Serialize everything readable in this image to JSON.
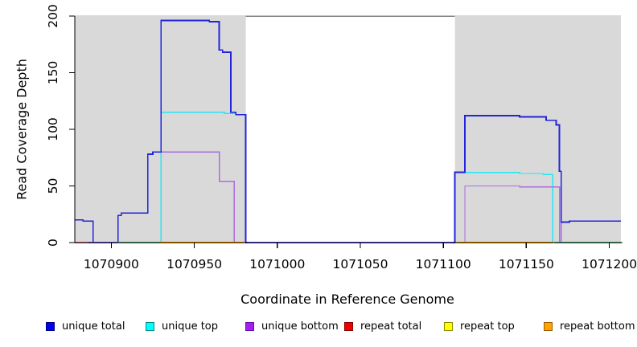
{
  "chart_data": {
    "type": "line",
    "title": "",
    "xlabel": "Coordinate in Reference Genome",
    "ylabel": "Read Coverage Depth",
    "xlim": [
      1070878,
      1071207
    ],
    "ylim": [
      0,
      200
    ],
    "x_ticks": [
      1070900,
      1070950,
      1071000,
      1071050,
      1071100,
      1071150,
      1071200
    ],
    "y_ticks": [
      0,
      50,
      100,
      150,
      200
    ],
    "grid": "off",
    "legend_position": "bottom",
    "shaded_color": "#D9D9D9",
    "shaded_regions": [
      {
        "from": 1070878,
        "to": 1070981
      },
      {
        "from": 1071107,
        "to": 1071207
      }
    ],
    "cap_line": {
      "value": 200,
      "from": 1070981,
      "to": 1071107,
      "color": "#828282"
    },
    "draw_order": [
      "repeat total",
      "repeat top",
      "repeat bottom",
      "unique top",
      "unique bottom",
      "unique total"
    ],
    "series": [
      {
        "name": "unique total",
        "color": "#2424DC",
        "width": 1.8,
        "points": [
          [
            1070878,
            20
          ],
          [
            1070883,
            20
          ],
          [
            1070883,
            19
          ],
          [
            1070889,
            19
          ],
          [
            1070889,
            0
          ],
          [
            1070904,
            0
          ],
          [
            1070904,
            24
          ],
          [
            1070906,
            24
          ],
          [
            1070906,
            26
          ],
          [
            1070922,
            26
          ],
          [
            1070922,
            78
          ],
          [
            1070925,
            78
          ],
          [
            1070925,
            80
          ],
          [
            1070930,
            80
          ],
          [
            1070930,
            196
          ],
          [
            1070959,
            196
          ],
          [
            1070959,
            195
          ],
          [
            1070965,
            195
          ],
          [
            1070965,
            170
          ],
          [
            1070967,
            170
          ],
          [
            1070967,
            168
          ],
          [
            1070972,
            168
          ],
          [
            1070972,
            115
          ],
          [
            1070975,
            115
          ],
          [
            1070975,
            113
          ],
          [
            1070981,
            113
          ],
          [
            1070981,
            0
          ],
          [
            1071107,
            0
          ],
          [
            1071107,
            62
          ],
          [
            1071113,
            62
          ],
          [
            1071113,
            112
          ],
          [
            1071146,
            112
          ],
          [
            1071146,
            111
          ],
          [
            1071162,
            111
          ],
          [
            1071162,
            108
          ],
          [
            1071168,
            108
          ],
          [
            1071168,
            104
          ],
          [
            1071170,
            104
          ],
          [
            1071170,
            63
          ],
          [
            1071171,
            63
          ],
          [
            1071171,
            18
          ],
          [
            1071176,
            18
          ],
          [
            1071176,
            19
          ],
          [
            1071207,
            19
          ]
        ]
      },
      {
        "name": "unique top",
        "color": "#22E8F2",
        "width": 1.4,
        "points": [
          [
            1070878,
            20
          ],
          [
            1070883,
            20
          ],
          [
            1070883,
            19
          ],
          [
            1070889,
            19
          ],
          [
            1070889,
            0
          ],
          [
            1070930,
            0
          ],
          [
            1070930,
            115
          ],
          [
            1070968,
            115
          ],
          [
            1070968,
            114
          ],
          [
            1070975,
            114
          ],
          [
            1070975,
            113
          ],
          [
            1070981,
            113
          ],
          [
            1070981,
            0
          ],
          [
            1071107,
            0
          ],
          [
            1071107,
            62
          ],
          [
            1071146,
            62
          ],
          [
            1071146,
            61
          ],
          [
            1071160,
            61
          ],
          [
            1071160,
            60
          ],
          [
            1071166,
            60
          ],
          [
            1071166,
            0
          ],
          [
            1071207,
            0
          ]
        ]
      },
      {
        "name": "unique bottom",
        "color": "#AB6CDE",
        "width": 1.4,
        "points": [
          [
            1070878,
            0
          ],
          [
            1070904,
            0
          ],
          [
            1070904,
            24
          ],
          [
            1070906,
            24
          ],
          [
            1070906,
            26
          ],
          [
            1070922,
            26
          ],
          [
            1070922,
            78
          ],
          [
            1070925,
            78
          ],
          [
            1070925,
            80
          ],
          [
            1070965,
            80
          ],
          [
            1070965,
            54
          ],
          [
            1070974,
            54
          ],
          [
            1070974,
            0
          ],
          [
            1071113,
            0
          ],
          [
            1071113,
            50
          ],
          [
            1071146,
            50
          ],
          [
            1071146,
            49
          ],
          [
            1071170,
            49
          ],
          [
            1071170,
            0
          ],
          [
            1071171,
            0
          ],
          [
            1071171,
            18
          ],
          [
            1071176,
            18
          ],
          [
            1071176,
            19
          ],
          [
            1071207,
            19
          ]
        ]
      },
      {
        "name": "repeat total",
        "color": "#E03040",
        "width": 1.4,
        "points": [
          [
            1070878,
            0
          ],
          [
            1071207,
            0
          ]
        ]
      },
      {
        "name": "repeat top",
        "color": "#F2F200",
        "width": 1.4,
        "points": [
          [
            1070878,
            0
          ],
          [
            1071207,
            0
          ]
        ]
      },
      {
        "name": "repeat bottom",
        "color": "#FFA500",
        "width": 1.4,
        "points": [
          [
            1070878,
            0
          ],
          [
            1071207,
            0
          ]
        ]
      }
    ],
    "baseline_overlays": [
      {
        "from": 1070878,
        "to": 1070886,
        "color": "#E8707F"
      },
      {
        "from": 1070886,
        "to": 1070904,
        "color": "#6A5AE0"
      },
      {
        "from": 1070904,
        "to": 1070929,
        "color": "#63C08B"
      },
      {
        "from": 1070929,
        "to": 1070980,
        "color": "#FFA500"
      },
      {
        "from": 1070982,
        "to": 1071106,
        "color": "#5E52E8"
      },
      {
        "from": 1071108,
        "to": 1071166,
        "color": "#FFA500"
      },
      {
        "from": 1071167,
        "to": 1071207,
        "color": "#63C08B"
      }
    ],
    "legend": {
      "items": [
        {
          "label": "unique total",
          "fill": "#0000EE",
          "border": "#000088"
        },
        {
          "label": "unique top",
          "fill": "#00FFFF",
          "border": "#008B8B"
        },
        {
          "label": "unique bottom",
          "fill": "#A020F0",
          "border": "#6A0DAD"
        },
        {
          "label": "repeat total",
          "fill": "#EE0000",
          "border": "#8B0000"
        },
        {
          "label": "repeat top",
          "fill": "#FFFF00",
          "border": "#8B8B00"
        },
        {
          "label": "repeat bottom",
          "fill": "#FFA500",
          "border": "#A05A00"
        }
      ]
    },
    "axis_color": "#000000",
    "tick_font_size": 15.5,
    "title_font_size": 16
  }
}
